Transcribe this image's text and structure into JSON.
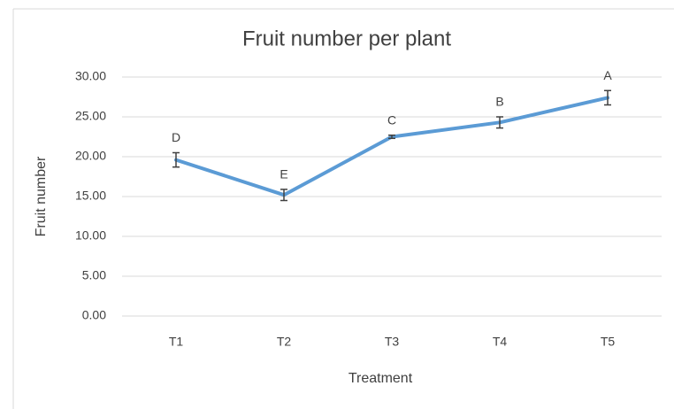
{
  "chart_data": {
    "type": "line",
    "title": "Fruit number per plant",
    "x_label": "Treatment",
    "y_label": "Fruit number",
    "categories": [
      "T1",
      "T2",
      "T3",
      "T4",
      "T5"
    ],
    "values": [
      19.6,
      15.2,
      22.5,
      24.3,
      27.4
    ],
    "errors": [
      0.9,
      0.7,
      0.2,
      0.7,
      0.9
    ],
    "point_labels": [
      "D",
      "E",
      "C",
      "B",
      "A"
    ],
    "color": "#5b9bd5",
    "ylim": [
      0,
      30
    ],
    "yticks": [
      {
        "value": 0,
        "label": "0.00"
      },
      {
        "value": 5,
        "label": "5.00"
      },
      {
        "value": 10,
        "label": "10.00"
      },
      {
        "value": 15,
        "label": "15.00"
      },
      {
        "value": 20,
        "label": "20.00"
      },
      {
        "value": 25,
        "label": "25.00"
      },
      {
        "value": 30,
        "label": "30.00"
      }
    ],
    "grid": true
  }
}
